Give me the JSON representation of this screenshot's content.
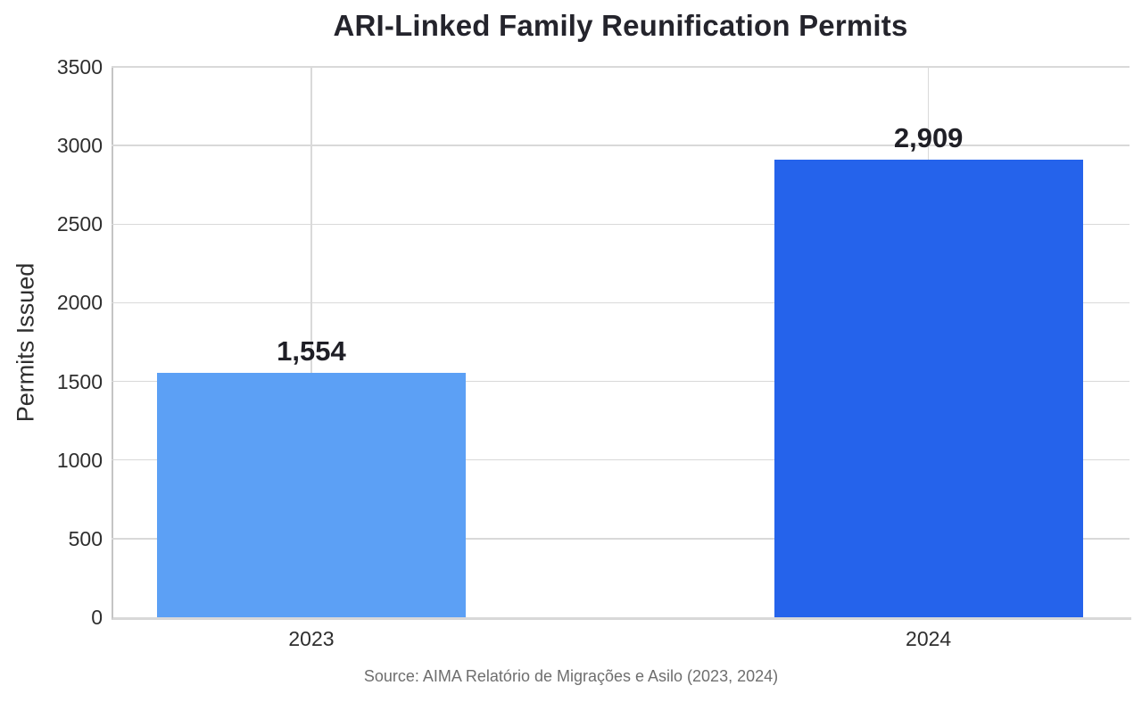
{
  "figure": {
    "source_note": "Source: AIMA Relatório de Migrações e Asilo (2023, 2024)"
  },
  "chart_data": {
    "type": "bar",
    "title": "ARI-Linked Family Reunification Permits",
    "categories": [
      "2023",
      "2024"
    ],
    "values": [
      1554,
      2909
    ],
    "value_labels": [
      "1,554",
      "2,909"
    ],
    "series": [
      {
        "name": "Permits Issued",
        "values": [
          1554,
          2909
        ]
      }
    ],
    "bar_colors": [
      "#5ca0f5",
      "#2563eb"
    ],
    "xlabel": "",
    "ylabel": "Permits Issued",
    "ylim": [
      0,
      3500
    ],
    "yticks": [
      0,
      500,
      1000,
      1500,
      2000,
      2500,
      3000,
      3500
    ],
    "grid": true,
    "legend": false
  },
  "colors": {
    "bar_2023": "#5ca0f5",
    "bar_2024": "#2563eb",
    "grid": "#d9d9d9",
    "axis_left": "#c4c4c4",
    "axis_bottom": "#d8d8d8",
    "title_text": "#24242c",
    "tick_text": "#2e2e2e",
    "value_label_text": "#1f1f26",
    "source_text": "#6e6e6e",
    "background": "#ffffff"
  }
}
